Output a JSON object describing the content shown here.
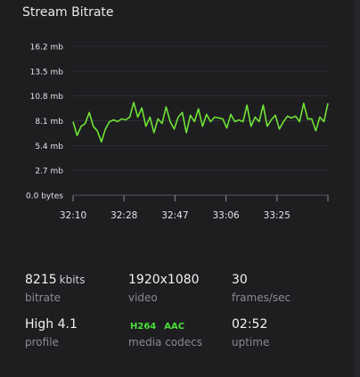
{
  "panel": {
    "title": "Stream Bitrate",
    "accent_color": "#6fe236"
  },
  "chart_data": {
    "type": "line",
    "title": "",
    "y_tick_labels": [
      "16.2 mb",
      "13.5 mb",
      "10.8 mb",
      "8.1 mb",
      "5.4 mb",
      "2.7 mb",
      "0.0 bytes"
    ],
    "x_tick_labels": [
      "32:10",
      "32:28",
      "32:47",
      "33:06",
      "33:25"
    ],
    "ylim": [
      0,
      16.2
    ],
    "grid": true,
    "series": [
      {
        "values": [
          8.0,
          6.5,
          7.5,
          7.8,
          9.0,
          7.5,
          7.0,
          5.8,
          7.2,
          8.0,
          8.2,
          8.0,
          8.3,
          8.2,
          8.5,
          10.1,
          8.5,
          9.5,
          7.5,
          8.5,
          6.8,
          8.3,
          7.8,
          9.6,
          8.0,
          7.2,
          8.5,
          9.0,
          6.8,
          8.7,
          8.0,
          9.4,
          7.5,
          8.8,
          8.0,
          8.5,
          8.4,
          8.3,
          7.3,
          8.8,
          8.0,
          8.2,
          8.0,
          9.8,
          7.5,
          8.5,
          8.0,
          9.8,
          7.5,
          8.2,
          8.7,
          7.2,
          8.0,
          8.6,
          8.4,
          8.6,
          8.0,
          10.0,
          8.3,
          8.3,
          7.0,
          8.5,
          8.0,
          10.0
        ]
      }
    ]
  },
  "stats": [
    {
      "value": "8215",
      "unit": "kbits",
      "label": "bitrate"
    },
    {
      "value": "1920x1080",
      "label": "video"
    },
    {
      "value": "30",
      "label": "frames/sec"
    },
    {
      "value": "High 4.1",
      "label": "profile"
    },
    {
      "codecs": [
        "H264",
        "AAC"
      ],
      "label": "media codecs"
    },
    {
      "value": "02:52",
      "label": "uptime"
    }
  ]
}
